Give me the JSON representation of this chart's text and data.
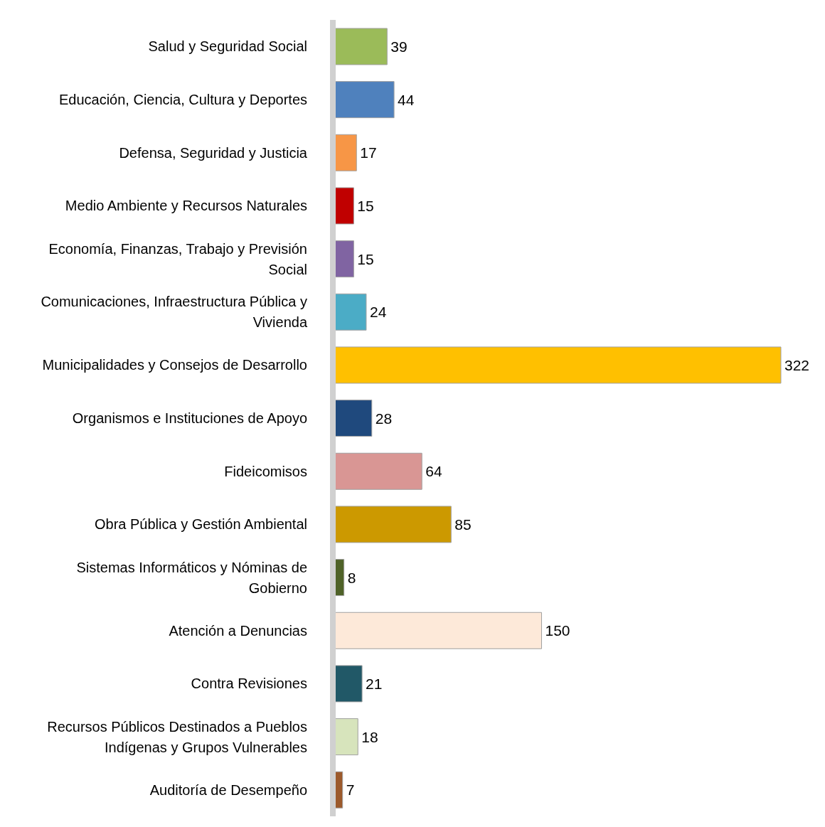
{
  "chart_data": {
    "type": "bar",
    "orientation": "horizontal",
    "data_labels": true,
    "grid": false,
    "legend": false,
    "categories": [
      "Salud y Seguridad Social",
      "Educación, Ciencia, Cultura y Deportes",
      "Defensa, Seguridad y Justicia",
      "Medio Ambiente y Recursos Naturales",
      "Economía, Finanzas, Trabajo y Previsión Social",
      "Comunicaciones, Infraestructura Pública y Vivienda",
      "Municipalidades y Consejos de Desarrollo",
      "Organismos e Instituciones de Apoyo",
      "Fideicomisos",
      "Obra Pública y Gestión Ambiental",
      "Sistemas Informáticos y Nóminas de Gobierno",
      "Atención a Denuncias",
      "Contra Revisiones",
      "Recursos Públicos Destinados a Pueblos Indígenas y Grupos Vulnerables",
      "Auditoría de Desempeño"
    ],
    "values": [
      39,
      44,
      17,
      15,
      15,
      24,
      322,
      28,
      64,
      85,
      8,
      150,
      21,
      18,
      7
    ],
    "colors": [
      "#9bbb59",
      "#4f81bd",
      "#f79646",
      "#c00000",
      "#8064a2",
      "#4bacc6",
      "#ffc000",
      "#1f497d",
      "#d99694",
      "#cc9900",
      "#4f6228",
      "#fde9d9",
      "#215867",
      "#d7e4bc",
      "#9c5a2c"
    ]
  }
}
